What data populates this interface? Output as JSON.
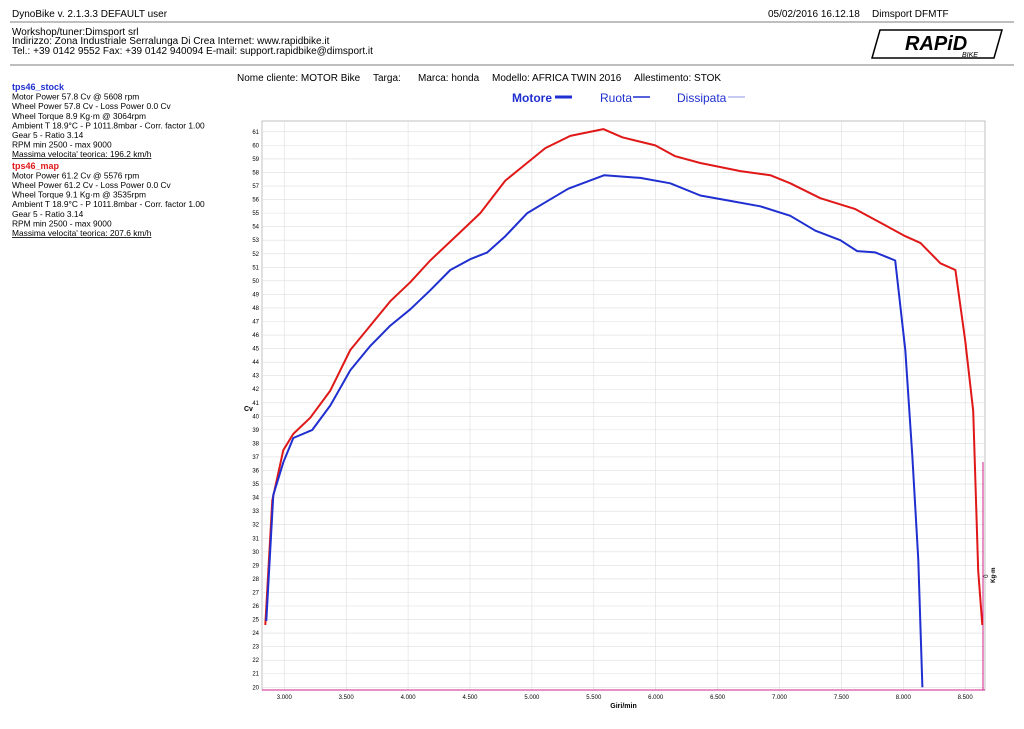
{
  "header": {
    "app": "DynoBike v. 2.1.3.3  DEFAULT user",
    "datetime": "05/02/2016 16.12.18",
    "station": "Dimsport DFMTF",
    "workshop": [
      "Workshop/tuner:Dimsport srl",
      "Indirizzo: Zona Industriale Serralunga Di Crea Internet: www.rapidbike.it",
      "Tel.: +39 0142 9552 Fax: +39 0142 940094 E-mail: support.rapidbike@dimsport.it"
    ],
    "logo": "RAPiD",
    "logo_sub": "BIKE"
  },
  "runs": [
    {
      "name": "tps46_stock",
      "color": "#1f2fd0",
      "lines": [
        "Motor Power 57.8 Cv  @ 5608 rpm",
        "Wheel Power 57.8 Cv  - Loss Power 0.0 Cv",
        "Wheel Torque 8.9 Kg·m  @ 3064rpm",
        "Ambient T 18.9°C - P 1011.8mbar - Corr. factor 1.00",
        "Gear 5 - Ratio 3.14",
        "RPM min 2500 - max 9000",
        "Massima velocita' teorica: 196.2 km/h"
      ]
    },
    {
      "name": "tps46_map",
      "color": "#e01818",
      "lines": [
        "Motor Power 61.2 Cv  @ 5576 rpm",
        "Wheel Power 61.2 Cv  - Loss Power 0.0 Cv",
        "Wheel Torque 9.1 Kg·m  @ 3535rpm",
        "Ambient T 18.9°C - P 1011.8mbar - Corr. factor 1.00",
        "Gear 5 - Ratio 3.14",
        "RPM min 2500 - max 9000",
        "Massima velocita' teorica: 207.6 km/h"
      ]
    }
  ],
  "info": [
    "Nome cliente: MOTOR Bike",
    "Targa:",
    "Marca: honda",
    "Modello: AFRICA TWIN 2016",
    "Allestimento: STOK"
  ],
  "legend": [
    "Motore",
    "Ruota",
    "Dissipata"
  ],
  "chart_data": {
    "type": "line",
    "x_label": "Giri/min",
    "y_label": "Cv",
    "y2_label": "Kg·m",
    "grid": true,
    "xlim": [
      2820,
      8660
    ],
    "ylim": [
      19.8,
      61.8
    ],
    "y2lim": [
      -1,
      4
    ],
    "xticks": [
      {
        "value": 3000,
        "label": "3.000"
      },
      {
        "value": 3500,
        "label": "3.500"
      },
      {
        "value": 4000,
        "label": "4.000"
      },
      {
        "value": 4500,
        "label": "4.500"
      },
      {
        "value": 5000,
        "label": "5.000"
      },
      {
        "value": 5500,
        "label": "5.500"
      },
      {
        "value": 6000,
        "label": "6.000"
      },
      {
        "value": 6500,
        "label": "6.500"
      },
      {
        "value": 7000,
        "label": "7.000"
      },
      {
        "value": 7500,
        "label": "7.500"
      },
      {
        "value": 8000,
        "label": "8.000"
      },
      {
        "value": 8500,
        "label": "8.500"
      }
    ],
    "yticks": [
      20,
      21,
      22,
      23,
      24,
      25,
      26,
      27,
      28,
      29,
      30,
      31,
      32,
      33,
      34,
      35,
      36,
      37,
      38,
      39,
      40,
      41,
      42,
      43,
      44,
      45,
      46,
      47,
      48,
      49,
      50,
      51,
      52,
      53,
      54,
      55,
      56,
      57,
      58,
      59,
      60,
      61
    ],
    "y2ticks": [
      0
    ],
    "series": [
      {
        "color": "#e01818",
        "x": [
          2847,
          2903,
          2992,
          3073,
          3210,
          3372,
          3533,
          3695,
          3856,
          4018,
          4179,
          4422,
          4583,
          4785,
          4947,
          5108,
          5310,
          5577,
          5730,
          5997,
          6158,
          6360,
          6684,
          6926,
          7087,
          7330,
          7612,
          7814,
          8016,
          8138,
          8300,
          8421,
          8500,
          8565,
          8605,
          8638
        ],
        "values": [
          24.6,
          33.8,
          37.5,
          38.7,
          39.9,
          41.9,
          44.9,
          46.7,
          48.5,
          49.9,
          51.5,
          53.6,
          55.0,
          57.4,
          58.6,
          59.8,
          60.7,
          61.2,
          60.6,
          60.0,
          59.2,
          58.7,
          58.1,
          57.8,
          57.2,
          56.1,
          55.3,
          54.3,
          53.3,
          52.8,
          51.3,
          50.8,
          45.6,
          40.4,
          28.6,
          24.6
        ]
      },
      {
        "color": "#1f2fd0",
        "x": [
          2855,
          2911,
          2992,
          3073,
          3226,
          3372,
          3533,
          3695,
          3856,
          4018,
          4179,
          4341,
          4502,
          4640,
          4785,
          4963,
          5108,
          5294,
          5585,
          5876,
          6118,
          6360,
          6603,
          6845,
          7087,
          7290,
          7491,
          7628,
          7774,
          7935,
          8016,
          8073,
          8121,
          8154
        ],
        "values": [
          24.9,
          34.2,
          36.6,
          38.4,
          39.0,
          40.8,
          43.4,
          45.2,
          46.7,
          47.9,
          49.3,
          50.8,
          51.6,
          52.1,
          53.3,
          55.0,
          55.8,
          56.8,
          57.8,
          57.6,
          57.2,
          56.3,
          55.9,
          55.5,
          54.8,
          53.7,
          53.0,
          52.2,
          52.1,
          51.5,
          44.9,
          37.1,
          29.4,
          20.0
        ]
      }
    ]
  }
}
